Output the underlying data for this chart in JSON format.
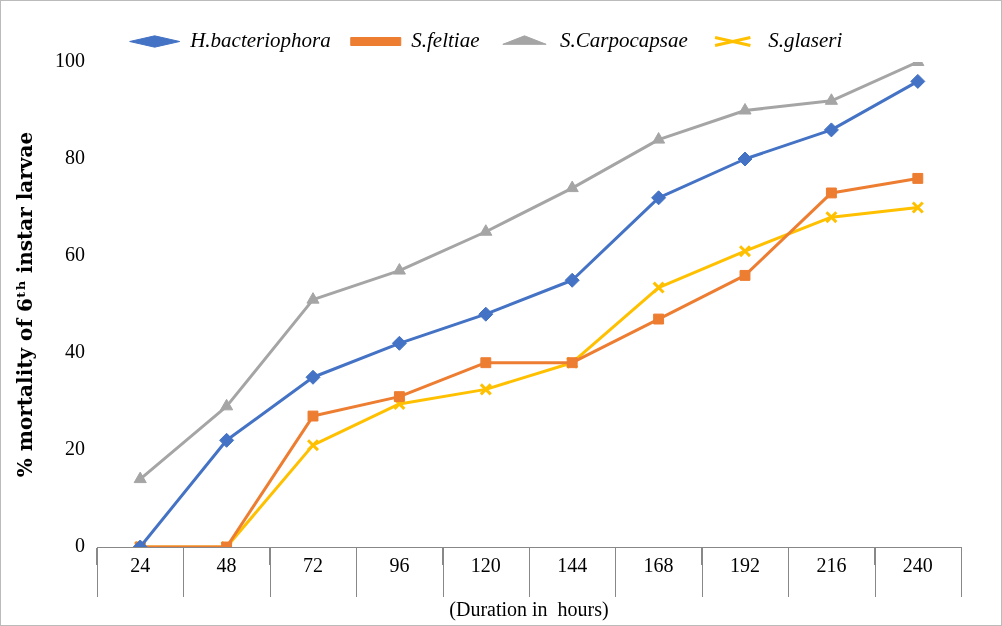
{
  "chart_data": {
    "type": "line",
    "xlabel": "(Duration in  hours)",
    "ylabel": "% mortality of 6ᵗʰ instar larvae",
    "categories": [
      "24",
      "48",
      "72",
      "96",
      "120",
      "144",
      "168",
      "192",
      "216",
      "240"
    ],
    "series": [
      {
        "name": "H.bacteriophora",
        "color": "#4472c4",
        "marker": "diamond",
        "values": [
          0,
          22,
          35,
          42,
          48,
          55,
          72,
          80,
          86,
          96
        ]
      },
      {
        "name": "S.feltiae",
        "color": "#ed7d31",
        "marker": "square",
        "values": [
          0,
          0,
          27,
          31,
          38,
          38,
          47,
          56,
          73,
          76
        ]
      },
      {
        "name": "S.Carpocapsae",
        "color": "#a5a5a5",
        "marker": "triangle",
        "values": [
          14,
          29,
          51,
          57,
          65,
          74,
          84,
          90,
          92,
          100
        ]
      },
      {
        "name": "S.glaseri",
        "color": "#ffc000",
        "marker": "cross",
        "values": [
          0,
          0,
          21,
          29.5,
          32.5,
          38,
          53.5,
          61,
          68,
          70
        ]
      }
    ],
    "ylim": [
      0,
      100
    ],
    "yticks": [
      0,
      20,
      40,
      60,
      80,
      100
    ],
    "grid": false,
    "legend": "top",
    "line_style": "solid"
  }
}
